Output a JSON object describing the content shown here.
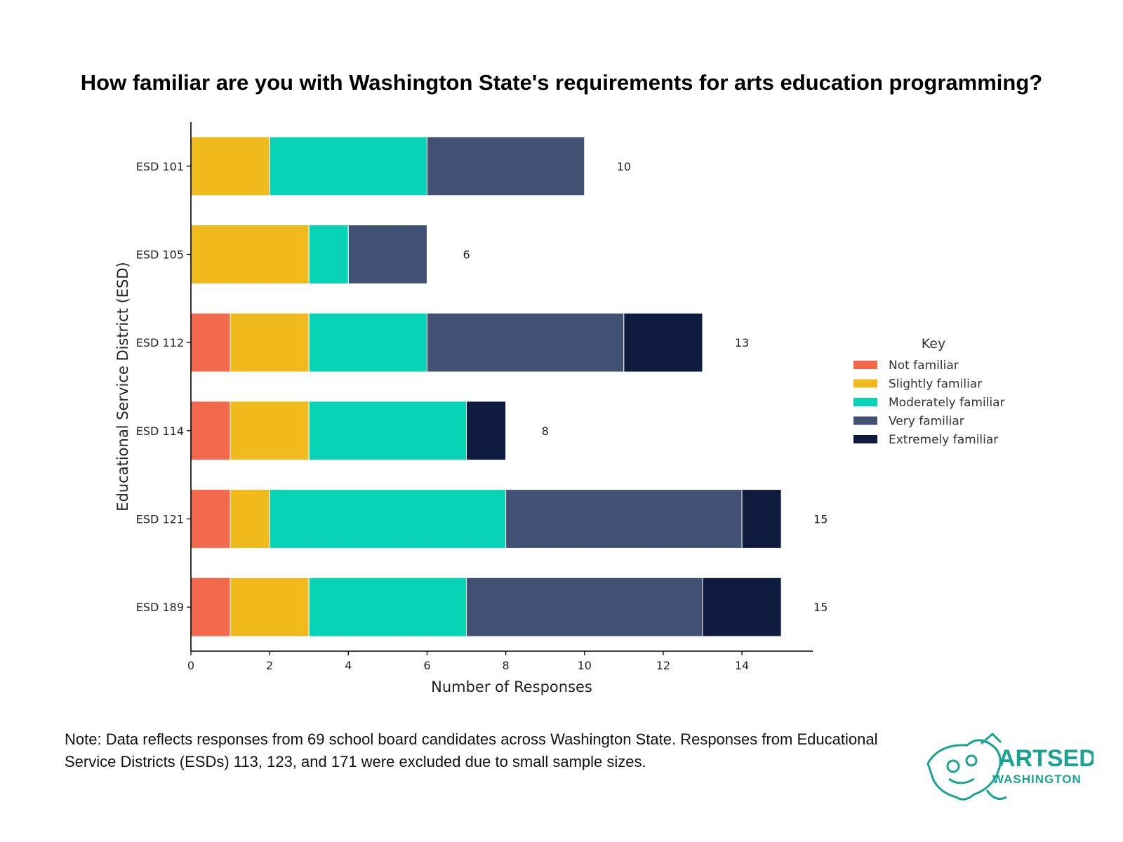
{
  "chart_data": {
    "type": "bar",
    "orientation": "horizontal",
    "stacked": true,
    "title": "How familiar are you with Washington State's requirements for arts education programming?",
    "xlabel": "Number of Responses",
    "ylabel": "Educational Service District (ESD)",
    "xlim": [
      0,
      15.8
    ],
    "xticks": [
      0,
      2,
      4,
      6,
      8,
      10,
      12,
      14
    ],
    "categories": [
      "ESD 101",
      "ESD 105",
      "ESD 112",
      "ESD 114",
      "ESD 121",
      "ESD 189"
    ],
    "series": [
      {
        "name": "Not familiar",
        "color": "#F26A4B",
        "values": [
          0,
          0,
          1,
          1,
          1,
          1
        ]
      },
      {
        "name": "Slightly familiar",
        "color": "#F0BA1C",
        "values": [
          2,
          3,
          2,
          2,
          1,
          2
        ]
      },
      {
        "name": "Moderately familiar",
        "color": "#07D4B6",
        "values": [
          4,
          1,
          3,
          4,
          6,
          4
        ]
      },
      {
        "name": "Very familiar",
        "color": "#405173",
        "values": [
          4,
          2,
          5,
          0,
          6,
          6
        ]
      },
      {
        "name": "Extremely familiar",
        "color": "#0E1B3F",
        "values": [
          0,
          0,
          2,
          1,
          1,
          2
        ]
      }
    ],
    "totals": [
      10,
      6,
      13,
      8,
      15,
      15
    ],
    "legend": {
      "title": "Key",
      "position": "right"
    },
    "grid": false
  },
  "note": "Note: Data reflects responses from 69 school board candidates across Washington State. Responses from Educational Service Districts (ESDs) 113, 123, and 171 were excluded due to small sample sizes.",
  "logo": {
    "line1": "ARTSED",
    "line2": "WASHINGTON",
    "color": "#1BA392"
  }
}
